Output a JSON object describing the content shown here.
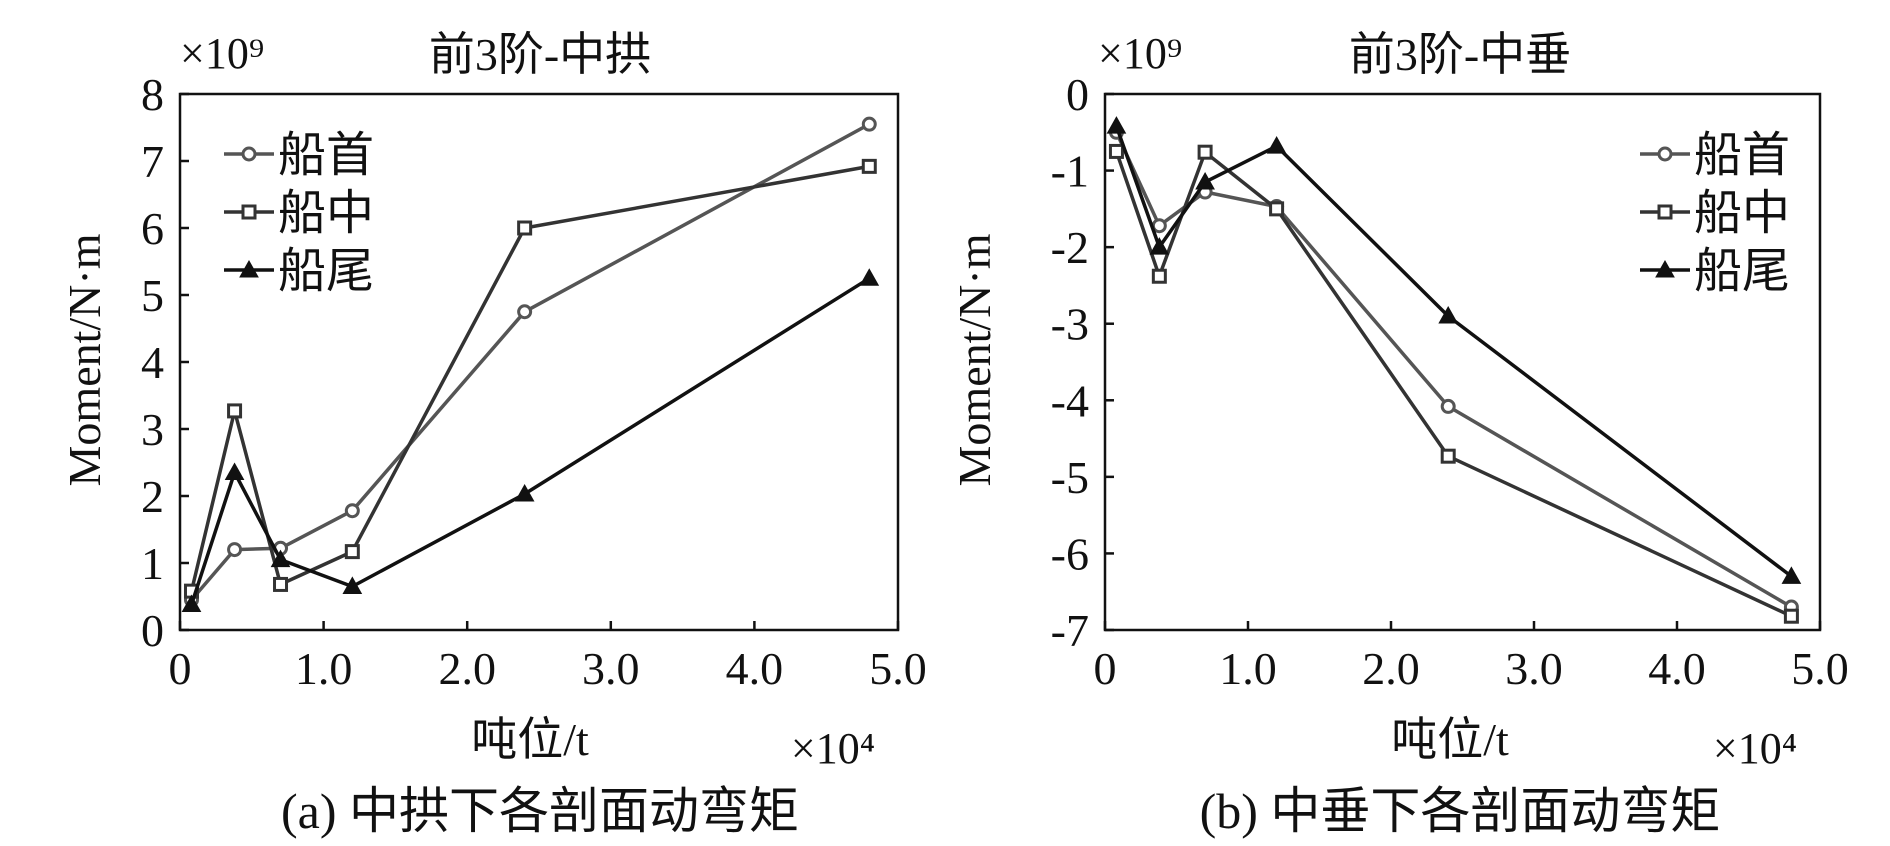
{
  "colors": {
    "series": [
      "#555555",
      "#333333",
      "#111111"
    ],
    "axis": "#111111",
    "background": "#ffffff"
  },
  "chart_data": [
    {
      "type": "line",
      "panel": "a",
      "title": "前3阶-中拱",
      "caption": "(a) 中拱下各剖面动弯矩",
      "xlabel": "吨位/t",
      "ylabel": "Moment/N·m",
      "x_multiplier": "×10⁴",
      "y_multiplier": "×10⁹",
      "xlim": [
        0,
        5
      ],
      "ylim": [
        0,
        8
      ],
      "xticks": [
        0,
        1,
        2,
        3,
        4,
        5
      ],
      "xtick_labels": [
        "0",
        "1.0",
        "2.0",
        "3.0",
        "4.0",
        "5.0"
      ],
      "yticks": [
        0,
        1,
        2,
        3,
        4,
        5,
        6,
        7,
        8
      ],
      "ytick_labels": [
        "0",
        "1",
        "2",
        "3",
        "4",
        "5",
        "6",
        "7",
        "8"
      ],
      "legend_position": "top-left",
      "x": [
        0.08,
        0.38,
        0.7,
        1.2,
        2.4,
        4.8
      ],
      "series": [
        {
          "name": "船首",
          "marker": "circle",
          "values": [
            0.45,
            1.2,
            1.22,
            1.78,
            4.75,
            7.55
          ]
        },
        {
          "name": "船中",
          "marker": "square",
          "values": [
            0.58,
            3.27,
            0.68,
            1.17,
            6.0,
            6.92
          ]
        },
        {
          "name": "船尾",
          "marker": "triangle",
          "values": [
            0.38,
            2.35,
            1.05,
            0.65,
            2.03,
            5.25
          ]
        }
      ]
    },
    {
      "type": "line",
      "panel": "b",
      "title": "前3阶-中垂",
      "caption": "(b) 中垂下各剖面动弯矩",
      "xlabel": "吨位/t",
      "ylabel": "Moment/N·m",
      "x_multiplier": "×10⁴",
      "y_multiplier": "×10⁹",
      "xlim": [
        0,
        5
      ],
      "ylim": [
        -7,
        0
      ],
      "xticks": [
        0,
        1,
        2,
        3,
        4,
        5
      ],
      "xtick_labels": [
        "0",
        "1.0",
        "2.0",
        "3.0",
        "4.0",
        "5.0"
      ],
      "yticks": [
        0,
        -1,
        -2,
        -3,
        -4,
        -5,
        -6,
        -7
      ],
      "ytick_labels": [
        "0",
        "-1",
        "-2",
        "-3",
        "-4",
        "-5",
        "-6",
        "-7"
      ],
      "legend_position": "top-right",
      "x": [
        0.08,
        0.38,
        0.7,
        1.2,
        2.4,
        4.8
      ],
      "series": [
        {
          "name": "船首",
          "marker": "circle",
          "values": [
            -0.5,
            -1.72,
            -1.28,
            -1.47,
            -4.08,
            -6.7
          ]
        },
        {
          "name": "船中",
          "marker": "square",
          "values": [
            -0.75,
            -2.38,
            -0.76,
            -1.5,
            -4.73,
            -6.82
          ]
        },
        {
          "name": "船尾",
          "marker": "triangle",
          "values": [
            -0.42,
            -2.0,
            -1.15,
            -0.68,
            -2.9,
            -6.3
          ]
        }
      ]
    }
  ]
}
